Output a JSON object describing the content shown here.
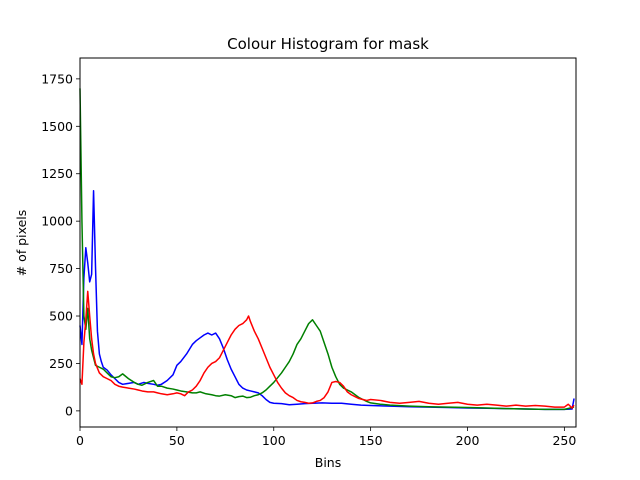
{
  "chart_data": {
    "type": "line",
    "title": "Colour Histogram for mask",
    "xlabel": "Bins",
    "ylabel": "# of pixels",
    "xlim": [
      0,
      256
    ],
    "ylim": [
      -85,
      1860
    ],
    "xticks": [
      0,
      50,
      100,
      150,
      200,
      250
    ],
    "yticks": [
      0,
      250,
      500,
      750,
      1000,
      1250,
      1500,
      1750
    ],
    "grid": false,
    "legend": "none",
    "series": [
      {
        "color": "#0000ff",
        "points": [
          [
            0,
            450
          ],
          [
            1,
            350
          ],
          [
            2,
            700
          ],
          [
            3,
            860
          ],
          [
            4,
            780
          ],
          [
            5,
            680
          ],
          [
            6,
            720
          ],
          [
            7,
            1160
          ],
          [
            8,
            760
          ],
          [
            9,
            420
          ],
          [
            10,
            300
          ],
          [
            11,
            260
          ],
          [
            12,
            230
          ],
          [
            14,
            215
          ],
          [
            16,
            190
          ],
          [
            18,
            170
          ],
          [
            20,
            150
          ],
          [
            22,
            140
          ],
          [
            25,
            145
          ],
          [
            28,
            150
          ],
          [
            30,
            140
          ],
          [
            33,
            150
          ],
          [
            35,
            145
          ],
          [
            38,
            140
          ],
          [
            40,
            135
          ],
          [
            42,
            140
          ],
          [
            45,
            160
          ],
          [
            48,
            190
          ],
          [
            50,
            240
          ],
          [
            52,
            260
          ],
          [
            55,
            300
          ],
          [
            58,
            350
          ],
          [
            60,
            370
          ],
          [
            62,
            385
          ],
          [
            64,
            400
          ],
          [
            66,
            410
          ],
          [
            68,
            400
          ],
          [
            70,
            410
          ],
          [
            72,
            380
          ],
          [
            74,
            330
          ],
          [
            76,
            270
          ],
          [
            78,
            220
          ],
          [
            80,
            180
          ],
          [
            82,
            140
          ],
          [
            84,
            120
          ],
          [
            86,
            110
          ],
          [
            88,
            105
          ],
          [
            90,
            100
          ],
          [
            92,
            95
          ],
          [
            94,
            80
          ],
          [
            96,
            60
          ],
          [
            98,
            45
          ],
          [
            100,
            40
          ],
          [
            104,
            38
          ],
          [
            108,
            32
          ],
          [
            112,
            35
          ],
          [
            116,
            38
          ],
          [
            120,
            40
          ],
          [
            125,
            42
          ],
          [
            130,
            40
          ],
          [
            135,
            40
          ],
          [
            140,
            35
          ],
          [
            145,
            30
          ],
          [
            150,
            28
          ],
          [
            160,
            25
          ],
          [
            170,
            22
          ],
          [
            180,
            20
          ],
          [
            190,
            18
          ],
          [
            200,
            15
          ],
          [
            210,
            14
          ],
          [
            220,
            12
          ],
          [
            230,
            10
          ],
          [
            240,
            8
          ],
          [
            250,
            8
          ],
          [
            254,
            10
          ],
          [
            255,
            65
          ]
        ]
      },
      {
        "color": "#008000",
        "points": [
          [
            0,
            1700
          ],
          [
            1,
            1000
          ],
          [
            2,
            500
          ],
          [
            3,
            430
          ],
          [
            4,
            540
          ],
          [
            5,
            380
          ],
          [
            6,
            320
          ],
          [
            7,
            280
          ],
          [
            8,
            240
          ],
          [
            10,
            230
          ],
          [
            12,
            220
          ],
          [
            14,
            200
          ],
          [
            16,
            180
          ],
          [
            18,
            175
          ],
          [
            20,
            180
          ],
          [
            22,
            195
          ],
          [
            25,
            170
          ],
          [
            28,
            150
          ],
          [
            30,
            140
          ],
          [
            32,
            135
          ],
          [
            35,
            150
          ],
          [
            38,
            160
          ],
          [
            40,
            130
          ],
          [
            42,
            130
          ],
          [
            45,
            120
          ],
          [
            48,
            115
          ],
          [
            50,
            110
          ],
          [
            52,
            105
          ],
          [
            55,
            100
          ],
          [
            58,
            95
          ],
          [
            60,
            95
          ],
          [
            62,
            100
          ],
          [
            65,
            90
          ],
          [
            68,
            85
          ],
          [
            70,
            80
          ],
          [
            72,
            78
          ],
          [
            75,
            85
          ],
          [
            78,
            80
          ],
          [
            80,
            70
          ],
          [
            82,
            75
          ],
          [
            84,
            78
          ],
          [
            86,
            70
          ],
          [
            88,
            72
          ],
          [
            90,
            80
          ],
          [
            92,
            85
          ],
          [
            94,
            95
          ],
          [
            96,
            110
          ],
          [
            98,
            130
          ],
          [
            100,
            150
          ],
          [
            102,
            175
          ],
          [
            104,
            200
          ],
          [
            106,
            230
          ],
          [
            108,
            260
          ],
          [
            110,
            300
          ],
          [
            112,
            350
          ],
          [
            114,
            380
          ],
          [
            116,
            420
          ],
          [
            118,
            460
          ],
          [
            120,
            480
          ],
          [
            122,
            450
          ],
          [
            124,
            420
          ],
          [
            126,
            360
          ],
          [
            128,
            300
          ],
          [
            130,
            230
          ],
          [
            132,
            180
          ],
          [
            134,
            140
          ],
          [
            136,
            120
          ],
          [
            138,
            110
          ],
          [
            140,
            100
          ],
          [
            142,
            85
          ],
          [
            144,
            70
          ],
          [
            146,
            60
          ],
          [
            148,
            50
          ],
          [
            150,
            42
          ],
          [
            155,
            35
          ],
          [
            160,
            30
          ],
          [
            170,
            25
          ],
          [
            180,
            22
          ],
          [
            190,
            20
          ],
          [
            200,
            18
          ],
          [
            210,
            15
          ],
          [
            220,
            12
          ],
          [
            230,
            10
          ],
          [
            240,
            8
          ],
          [
            250,
            8
          ],
          [
            255,
            20
          ]
        ]
      },
      {
        "color": "#ff0000",
        "points": [
          [
            0,
            170
          ],
          [
            1,
            140
          ],
          [
            2,
            360
          ],
          [
            3,
            480
          ],
          [
            4,
            630
          ],
          [
            5,
            500
          ],
          [
            6,
            380
          ],
          [
            7,
            300
          ],
          [
            8,
            250
          ],
          [
            10,
            200
          ],
          [
            12,
            180
          ],
          [
            14,
            170
          ],
          [
            16,
            160
          ],
          [
            18,
            140
          ],
          [
            20,
            130
          ],
          [
            22,
            125
          ],
          [
            25,
            120
          ],
          [
            28,
            115
          ],
          [
            30,
            110
          ],
          [
            32,
            105
          ],
          [
            35,
            100
          ],
          [
            38,
            100
          ],
          [
            40,
            95
          ],
          [
            42,
            90
          ],
          [
            45,
            85
          ],
          [
            48,
            90
          ],
          [
            50,
            95
          ],
          [
            52,
            90
          ],
          [
            54,
            80
          ],
          [
            56,
            100
          ],
          [
            58,
            110
          ],
          [
            60,
            130
          ],
          [
            62,
            160
          ],
          [
            64,
            200
          ],
          [
            66,
            230
          ],
          [
            68,
            250
          ],
          [
            70,
            260
          ],
          [
            72,
            280
          ],
          [
            74,
            320
          ],
          [
            76,
            360
          ],
          [
            78,
            400
          ],
          [
            80,
            430
          ],
          [
            82,
            450
          ],
          [
            84,
            460
          ],
          [
            86,
            480
          ],
          [
            87,
            500
          ],
          [
            88,
            470
          ],
          [
            90,
            420
          ],
          [
            92,
            380
          ],
          [
            94,
            330
          ],
          [
            96,
            280
          ],
          [
            98,
            230
          ],
          [
            100,
            190
          ],
          [
            102,
            150
          ],
          [
            104,
            120
          ],
          [
            106,
            95
          ],
          [
            108,
            80
          ],
          [
            110,
            70
          ],
          [
            112,
            55
          ],
          [
            114,
            48
          ],
          [
            116,
            45
          ],
          [
            118,
            40
          ],
          [
            120,
            42
          ],
          [
            122,
            50
          ],
          [
            124,
            55
          ],
          [
            126,
            70
          ],
          [
            128,
            100
          ],
          [
            130,
            150
          ],
          [
            132,
            155
          ],
          [
            134,
            150
          ],
          [
            136,
            130
          ],
          [
            138,
            100
          ],
          [
            140,
            85
          ],
          [
            142,
            75
          ],
          [
            144,
            65
          ],
          [
            146,
            60
          ],
          [
            148,
            55
          ],
          [
            150,
            60
          ],
          [
            155,
            55
          ],
          [
            160,
            45
          ],
          [
            165,
            40
          ],
          [
            170,
            45
          ],
          [
            175,
            50
          ],
          [
            180,
            40
          ],
          [
            185,
            35
          ],
          [
            190,
            40
          ],
          [
            195,
            45
          ],
          [
            200,
            35
          ],
          [
            205,
            30
          ],
          [
            210,
            35
          ],
          [
            215,
            30
          ],
          [
            220,
            25
          ],
          [
            225,
            30
          ],
          [
            230,
            25
          ],
          [
            235,
            28
          ],
          [
            240,
            25
          ],
          [
            245,
            20
          ],
          [
            250,
            20
          ],
          [
            252,
            35
          ],
          [
            254,
            15
          ],
          [
            255,
            30
          ]
        ]
      }
    ]
  }
}
